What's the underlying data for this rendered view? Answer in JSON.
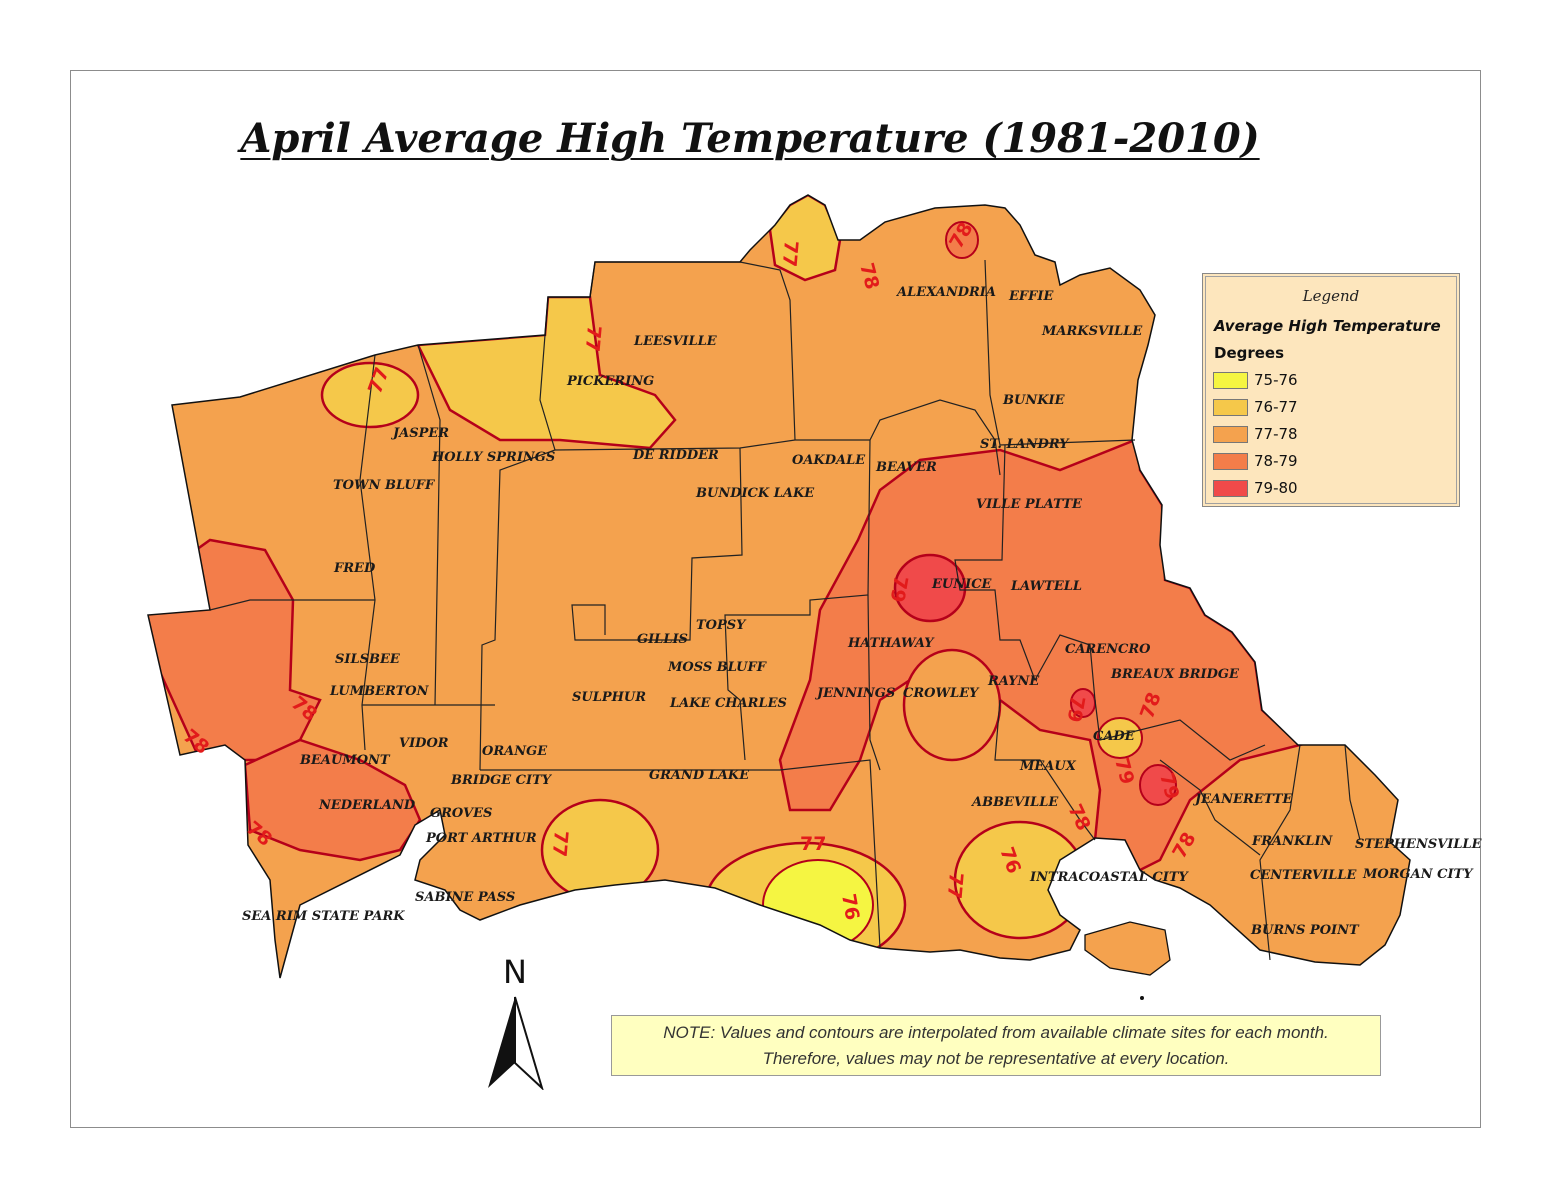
{
  "title": "April Average High Temperature (1981-2010)",
  "legend": {
    "title": "Legend",
    "subtitle": "Average High Temperature",
    "unit": "Degrees",
    "classes": [
      {
        "label": "75-76",
        "color": "#f5f542"
      },
      {
        "label": "76-77",
        "color": "#f5c84a"
      },
      {
        "label": "77-78",
        "color": "#f4a24e"
      },
      {
        "label": "78-79",
        "color": "#f37d4a"
      },
      {
        "label": "79-80",
        "color": "#f04a4a"
      }
    ]
  },
  "contour_color": "#b5001a",
  "contour_labels": [
    "77",
    "78",
    "78",
    "77",
    "77",
    "78",
    "78",
    "78",
    "79",
    "79",
    "78",
    "79",
    "79",
    "78",
    "77",
    "77",
    "76",
    "76",
    "77",
    "78",
    "78"
  ],
  "towns": [
    "ALEXANDRIA",
    "EFFIE",
    "MARKSVILLE",
    "LEESVILLE",
    "PICKERING",
    "BUNKIE",
    "JASPER",
    "ST. LANDRY",
    "HOLLY SPRINGS",
    "DE RIDDER",
    "OAKDALE",
    "BEAVER",
    "TOWN BLUFF",
    "BUNDICK LAKE",
    "VILLE PLATTE",
    "FRED",
    "EUNICE",
    "LAWTELL",
    "TOPSY",
    "GILLIS",
    "HATHAWAY",
    "CARENCRO",
    "SILSBEE",
    "MOSS BLUFF",
    "BREAUX BRIDGE",
    "LUMBERTON",
    "SULPHUR",
    "LAKE CHARLES",
    "JENNINGS",
    "CROWLEY",
    "RAYNE",
    "CADE",
    "VIDOR",
    "ORANGE",
    "BEAUMONT",
    "MEAUX",
    "BRIDGE CITY",
    "GRAND LAKE",
    "NEDERLAND",
    "ABBEVILLE",
    "JEANERETTE",
    "GROVES",
    "PORT ARTHUR",
    "FRANKLIN",
    "STEPHENSVILLE",
    "CENTERVILLE",
    "MORGAN CITY",
    "INTRACOASTAL CITY",
    "SABINE PASS",
    "SEA RIM STATE PARK",
    "BURNS POINT"
  ],
  "north_label": "N",
  "note": {
    "line1": "NOTE: Values and contours are interpolated from available climate sites for each month.",
    "line2": "Therefore, values may not be representative at every location."
  }
}
